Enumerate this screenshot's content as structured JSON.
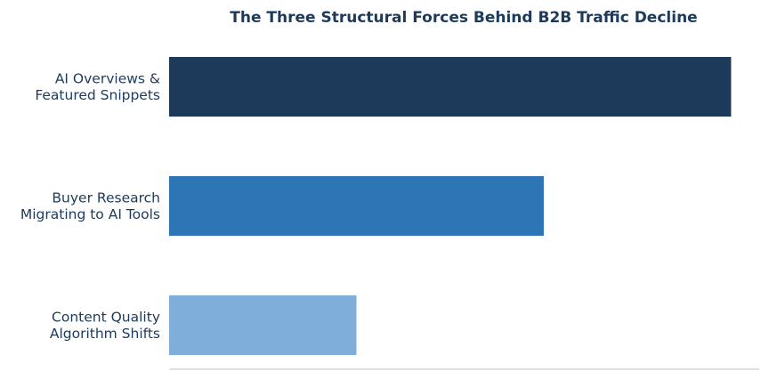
{
  "chart_data": {
    "type": "bar",
    "orientation": "horizontal",
    "title": "The Three Structural Forces Behind B2B Traffic Decline",
    "categories": [
      [
        "AI Overviews &",
        "Featured Snippets"
      ],
      [
        "Buyer Research",
        "Migrating to AI Tools"
      ],
      [
        "Content Quality",
        "Algorithm Shifts"
      ]
    ],
    "values": [
      3,
      2,
      1
    ],
    "xlim": [
      0,
      3.15
    ],
    "bar_colors": [
      "#1e3a5a",
      "#2e75b6",
      "#7eaed9"
    ],
    "grid": false,
    "legend": "none"
  },
  "colors": {
    "text": "#1e3a5a",
    "axis_line": "#cccccc",
    "background": "#ffffff"
  }
}
